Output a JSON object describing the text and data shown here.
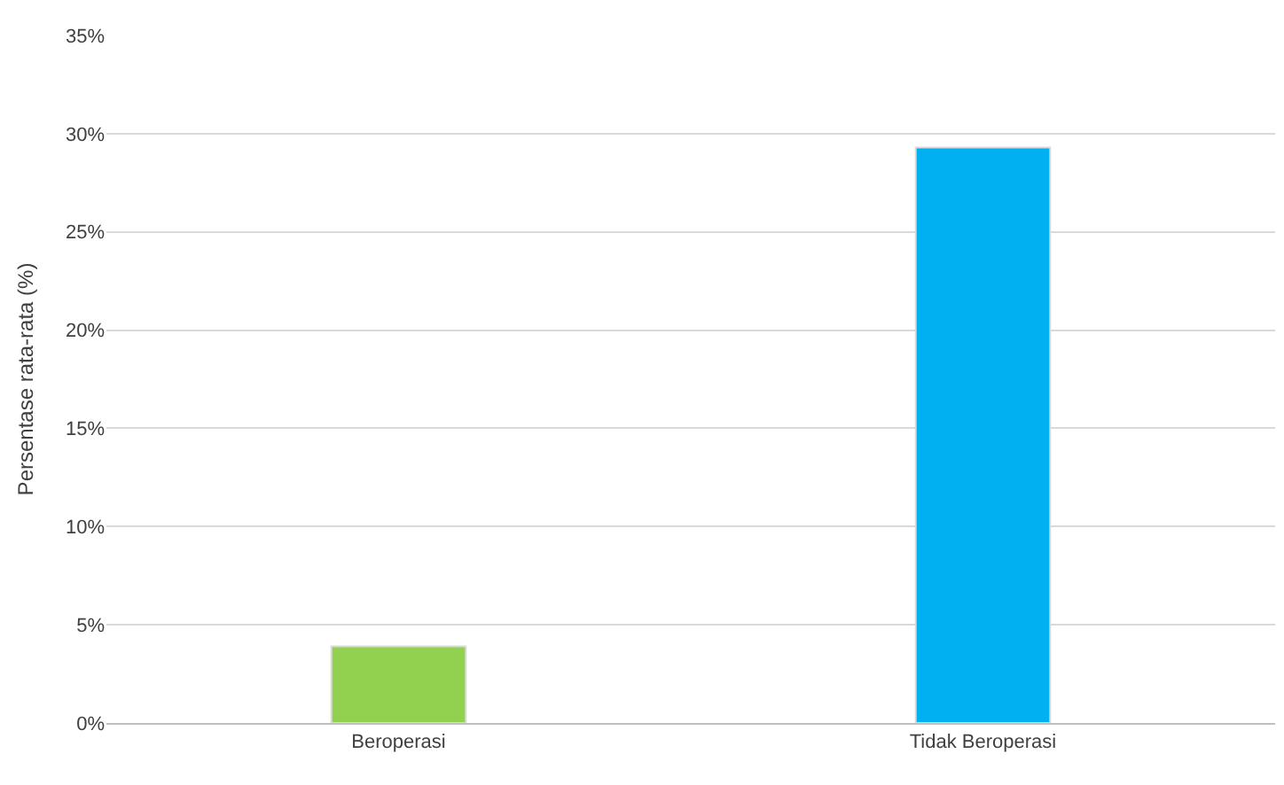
{
  "chart_data": {
    "type": "bar",
    "ylabel": "Persentase rata-rata (%)",
    "categories": [
      "Beroperasi",
      "Tidak Beroperasi"
    ],
    "values": [
      3.9,
      29.3
    ],
    "colors": [
      "#92d050",
      "#00b0f0"
    ],
    "ylim": [
      0,
      35
    ],
    "yticks": [
      {
        "value": 0,
        "label": "0%"
      },
      {
        "value": 5,
        "label": "5%"
      },
      {
        "value": 10,
        "label": "10%"
      },
      {
        "value": 15,
        "label": "15%"
      },
      {
        "value": 20,
        "label": "20%"
      },
      {
        "value": 25,
        "label": "25%"
      },
      {
        "value": 30,
        "label": "30%"
      },
      {
        "value": 35,
        "label": "35%"
      }
    ],
    "grid": "y"
  }
}
